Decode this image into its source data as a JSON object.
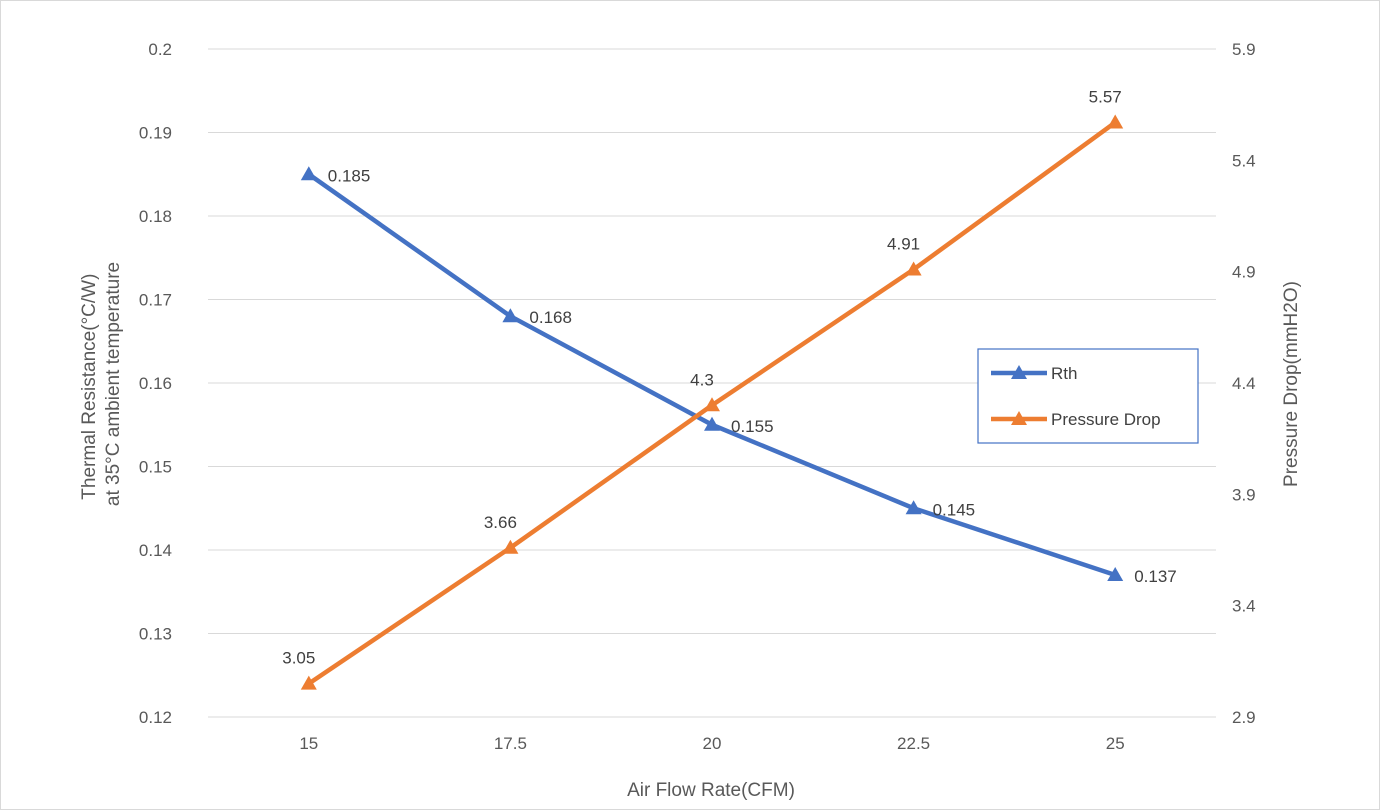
{
  "chart_data": {
    "type": "line",
    "title": "",
    "xlabel": "Air Flow Rate(CFM)",
    "ylabel_lines": [
      "Thermal Resistance(°C/W)",
      "at 35°C ambient temperature"
    ],
    "y2label": "Pressure Drop(mmH2O)",
    "categories": [
      "15",
      "17.5",
      "20",
      "22.5",
      "25"
    ],
    "ylim": [
      0.12,
      0.2
    ],
    "y_ticks": [
      "0.12",
      "0.13",
      "0.14",
      "0.15",
      "0.16",
      "0.17",
      "0.18",
      "0.19",
      "0.2"
    ],
    "y2lim": [
      2.9,
      5.9
    ],
    "y2_ticks": [
      "2.9",
      "3.4",
      "3.9",
      "4.4",
      "4.9",
      "5.4",
      "5.9"
    ],
    "grid": true,
    "legend_position": "right",
    "series": [
      {
        "name": "Rth",
        "axis": "left",
        "color": "#4472C4",
        "marker": "triangle",
        "values": [
          0.185,
          0.168,
          0.155,
          0.145,
          0.137
        ],
        "labels": [
          "0.185",
          "0.168",
          "0.155",
          "0.145",
          "0.137"
        ]
      },
      {
        "name": "Pressure Drop",
        "axis": "right",
        "color": "#ED7D31",
        "marker": "triangle",
        "values": [
          3.05,
          3.66,
          4.3,
          4.91,
          5.57
        ],
        "labels": [
          "3.05",
          "3.66",
          "4.3",
          "4.91",
          "5.57"
        ]
      }
    ]
  }
}
